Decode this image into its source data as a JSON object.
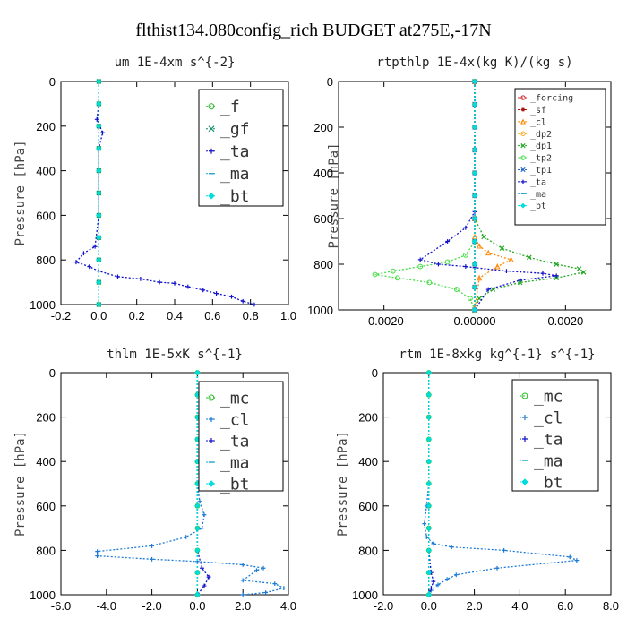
{
  "title": "flthist134.080config_rich  BUDGET at275E,-17N",
  "chart_data": [
    {
      "type": "line",
      "title": "um  1E-4xm s^{-2}",
      "ylabel": "Pressure [hPa]",
      "xlim": [
        -0.2,
        1.0
      ],
      "ylim": [
        1000,
        0
      ],
      "xticks": [
        "-0.2",
        "0.0",
        "0.2",
        "0.4",
        "0.6",
        "0.8",
        "1.0"
      ],
      "yticks": [
        "0",
        "200",
        "400",
        "600",
        "800",
        "1000"
      ],
      "legend_position": "top-right",
      "series": [
        {
          "name": "_f",
          "color": "#22bb22",
          "marker": "circle",
          "x": [
            0,
            0,
            0,
            0,
            0,
            0,
            0,
            0,
            0,
            0,
            0
          ],
          "y": [
            0,
            100,
            200,
            300,
            400,
            500,
            600,
            700,
            800,
            900,
            1000
          ]
        },
        {
          "name": "_gf",
          "color": "#0e8a6a",
          "marker": "cross",
          "x": [
            0,
            0,
            0,
            0,
            0,
            0,
            0,
            0,
            0,
            0,
            0
          ],
          "y": [
            0,
            100,
            200,
            300,
            400,
            500,
            600,
            700,
            800,
            900,
            1000
          ]
        },
        {
          "name": "_ta",
          "color": "#1010cc",
          "marker": "plus",
          "x": [
            0,
            0,
            -0.01,
            0.02,
            0,
            0,
            0,
            0,
            -0.02,
            -0.08,
            -0.12,
            -0.05,
            0,
            0.1,
            0.22,
            0.32,
            0.4,
            0.47,
            0.55,
            0.62,
            0.7,
            0.76,
            0.82
          ],
          "y": [
            0,
            100,
            170,
            230,
            300,
            400,
            500,
            600,
            740,
            770,
            810,
            830,
            850,
            875,
            885,
            900,
            905,
            920,
            935,
            950,
            965,
            985,
            1000
          ]
        },
        {
          "name": "_ma",
          "color": "#1aa6c8",
          "marker": "dash",
          "x": [
            0,
            0,
            0,
            0,
            0,
            0,
            0,
            0,
            0,
            0,
            0
          ],
          "y": [
            0,
            100,
            200,
            300,
            400,
            500,
            600,
            700,
            800,
            900,
            1000
          ]
        },
        {
          "name": "_bt",
          "color": "#00dddd",
          "marker": "diamond",
          "x": [
            0,
            0,
            0,
            0,
            0,
            0,
            0,
            0,
            0,
            0,
            0
          ],
          "y": [
            0,
            100,
            200,
            300,
            400,
            500,
            600,
            700,
            800,
            900,
            1000
          ]
        }
      ]
    },
    {
      "type": "line",
      "title": "rtpthlp  1E-4x(kg K)/(kg s)",
      "ylabel": "Pressure [hPa]",
      "xlim": [
        -0.003,
        0.003
      ],
      "ylim": [
        1000,
        0
      ],
      "xticks": [
        "-0.0020",
        "0.00000",
        "0.0020"
      ],
      "xtick_values": [
        -0.002,
        0,
        0.002
      ],
      "yticks": [
        "0",
        "200",
        "400",
        "600",
        "800",
        "1000"
      ],
      "legend_position": "top-right",
      "series": [
        {
          "name": "_forcing",
          "color": "#cc2222",
          "marker": "circle",
          "x": [
            0,
            0,
            0,
            0,
            0,
            0,
            0,
            0,
            0,
            0,
            0
          ],
          "y": [
            0,
            100,
            200,
            300,
            400,
            500,
            600,
            700,
            800,
            900,
            1000
          ]
        },
        {
          "name": "_sf",
          "color": "#aa1111",
          "marker": "star",
          "x": [
            0,
            0,
            0,
            0,
            0,
            0,
            0,
            0,
            0,
            0,
            0
          ],
          "y": [
            0,
            100,
            200,
            300,
            400,
            500,
            600,
            700,
            800,
            900,
            1000
          ]
        },
        {
          "name": "_cl",
          "color": "#ff8800",
          "marker": "triangle",
          "x": [
            0,
            0,
            0,
            0.0001,
            0.0003,
            0.0008,
            0.0005,
            0.0001,
            0
          ],
          "y": [
            0,
            600,
            680,
            720,
            750,
            780,
            810,
            860,
            1000
          ]
        },
        {
          "name": "_dp2",
          "color": "#ffaa22",
          "marker": "circle",
          "x": [
            0,
            0,
            0,
            0,
            0,
            0,
            0,
            0,
            0,
            0,
            0
          ],
          "y": [
            0,
            100,
            200,
            300,
            400,
            500,
            600,
            700,
            800,
            900,
            1000
          ]
        },
        {
          "name": "_dp1",
          "color": "#22aa22",
          "marker": "cross",
          "x": [
            0,
            0,
            0.0002,
            0.0006,
            0.0012,
            0.0018,
            0.0023,
            0.0024,
            0.0018,
            0.001,
            0.0004,
            0.0001,
            0
          ],
          "y": [
            0,
            600,
            680,
            730,
            770,
            800,
            820,
            835,
            860,
            880,
            910,
            950,
            1000
          ]
        },
        {
          "name": "_tp2",
          "color": "#44dd44",
          "marker": "circle",
          "x": [
            0,
            0,
            -0.0002,
            -0.0006,
            -0.0012,
            -0.0018,
            -0.0022,
            -0.0017,
            -0.001,
            -0.0004,
            -0.0001,
            0
          ],
          "y": [
            0,
            700,
            760,
            790,
            810,
            830,
            845,
            860,
            880,
            910,
            950,
            1000
          ]
        },
        {
          "name": "_tp1",
          "color": "#2266cc",
          "marker": "cross",
          "x": [
            0,
            0,
            0,
            0,
            0,
            0,
            0,
            0,
            0,
            0,
            0
          ],
          "y": [
            0,
            100,
            200,
            300,
            400,
            500,
            600,
            700,
            800,
            900,
            1000
          ]
        },
        {
          "name": "_ta",
          "color": "#1010cc",
          "marker": "plus",
          "x": [
            0,
            0,
            -0.0002,
            -0.0006,
            -0.0012,
            -0.0008,
            -0.0002,
            0,
            0.0007,
            0.0015,
            0.0018,
            0.001,
            0.0003,
            0
          ],
          "y": [
            0,
            570,
            640,
            700,
            780,
            800,
            810,
            815,
            830,
            840,
            850,
            870,
            910,
            1000
          ]
        },
        {
          "name": "_ma",
          "color": "#1aa6c8",
          "marker": "dash",
          "x": [
            0,
            0,
            0,
            0,
            0,
            0,
            0,
            0,
            0,
            0,
            0
          ],
          "y": [
            0,
            100,
            200,
            300,
            400,
            500,
            600,
            700,
            800,
            900,
            1000
          ]
        },
        {
          "name": "_bt",
          "color": "#00dddd",
          "marker": "diamond",
          "x": [
            0,
            0,
            0,
            0,
            0,
            0,
            0,
            0,
            0,
            0,
            0
          ],
          "y": [
            0,
            100,
            200,
            300,
            400,
            500,
            600,
            700,
            800,
            900,
            1000
          ]
        }
      ]
    },
    {
      "type": "line",
      "title": "thlm  1E-5xK s^{-1}",
      "ylabel": "Pressure [hPa]",
      "xlim": [
        -6.0,
        4.0
      ],
      "ylim": [
        1000,
        0
      ],
      "xticks": [
        "-6.0",
        "-4.0",
        "-2.0",
        "0.0",
        "2.0",
        "4.0"
      ],
      "yticks": [
        "0",
        "200",
        "400",
        "600",
        "800",
        "1000"
      ],
      "legend_position": "top-right",
      "series": [
        {
          "name": "_mc",
          "color": "#22bb22",
          "marker": "circle",
          "x": [
            0,
            0,
            0,
            0,
            0,
            0,
            0,
            0,
            0,
            0,
            0
          ],
          "y": [
            0,
            100,
            200,
            300,
            400,
            500,
            600,
            700,
            800,
            900,
            1000
          ]
        },
        {
          "name": "_cl",
          "color": "#1a7ad6",
          "marker": "plus",
          "x": [
            0,
            0,
            0.1,
            0.3,
            0.2,
            -0.5,
            -2.0,
            -4.4,
            -4.4,
            -2.0,
            0,
            2.0,
            2.9,
            2.6,
            2.0,
            3.4,
            3.8,
            3.0,
            2.0
          ],
          "y": [
            0,
            500,
            580,
            640,
            700,
            740,
            780,
            805,
            825,
            840,
            850,
            865,
            880,
            890,
            935,
            950,
            970,
            990,
            1000
          ]
        },
        {
          "name": "_ta",
          "color": "#1010cc",
          "marker": "plus",
          "x": [
            0,
            0,
            0,
            0,
            0.2,
            0.5,
            0.3,
            0
          ],
          "y": [
            0,
            600,
            700,
            800,
            880,
            920,
            960,
            1000
          ]
        },
        {
          "name": "_ma",
          "color": "#1aa6c8",
          "marker": "dash",
          "x": [
            0,
            0,
            0,
            0,
            0,
            0,
            0,
            0,
            0,
            0,
            0
          ],
          "y": [
            0,
            100,
            200,
            300,
            400,
            500,
            600,
            700,
            800,
            900,
            1000
          ]
        },
        {
          "name": "_bt",
          "color": "#00dddd",
          "marker": "diamond",
          "x": [
            0,
            0,
            0,
            0,
            0,
            0,
            0,
            0,
            0,
            0,
            0
          ],
          "y": [
            0,
            100,
            200,
            300,
            400,
            500,
            600,
            700,
            800,
            900,
            1000
          ]
        }
      ]
    },
    {
      "type": "line",
      "title": "rtm  1E-8xkg kg^{-1} s^{-1}",
      "ylabel": "Pressure [hPa]",
      "xlim": [
        -2.0,
        8.0
      ],
      "ylim": [
        1000,
        0
      ],
      "xticks": [
        "-2.0",
        "0.0",
        "2.0",
        "4.0",
        "6.0",
        "8.0"
      ],
      "yticks": [
        "0",
        "200",
        "400",
        "600",
        "800",
        "1000"
      ],
      "legend_position": "top-right",
      "series": [
        {
          "name": "_mc",
          "color": "#22bb22",
          "marker": "circle",
          "x": [
            0,
            0,
            0,
            0,
            0,
            0,
            0,
            0,
            0,
            0,
            0
          ],
          "y": [
            0,
            100,
            200,
            300,
            400,
            500,
            600,
            700,
            800,
            900,
            1000
          ]
        },
        {
          "name": "_cl",
          "color": "#1a7ad6",
          "marker": "plus",
          "x": [
            0,
            0,
            -0.1,
            -0.2,
            -0.1,
            0.2,
            1.0,
            3.3,
            6.2,
            6.5,
            3.0,
            1.2,
            0.8,
            0.4,
            0.1,
            0
          ],
          "y": [
            0,
            500,
            600,
            680,
            740,
            770,
            785,
            800,
            830,
            845,
            880,
            910,
            930,
            955,
            980,
            1000
          ]
        },
        {
          "name": "_ta",
          "color": "#1010cc",
          "marker": "plus",
          "x": [
            0,
            0,
            0,
            0.1,
            0.2,
            0.1,
            0
          ],
          "y": [
            0,
            600,
            800,
            900,
            940,
            970,
            1000
          ]
        },
        {
          "name": "_ma",
          "color": "#1aa6c8",
          "marker": "dash",
          "x": [
            0,
            0,
            0,
            0,
            0,
            0,
            0,
            0,
            0,
            0,
            0
          ],
          "y": [
            0,
            100,
            200,
            300,
            400,
            500,
            600,
            700,
            800,
            900,
            1000
          ]
        },
        {
          "name": "_bt",
          "color": "#00dddd",
          "marker": "diamond",
          "x": [
            0,
            0,
            0,
            0,
            0,
            0,
            0,
            0,
            0,
            0,
            0
          ],
          "y": [
            0,
            100,
            200,
            300,
            400,
            500,
            600,
            700,
            800,
            900,
            1000
          ]
        }
      ]
    }
  ]
}
